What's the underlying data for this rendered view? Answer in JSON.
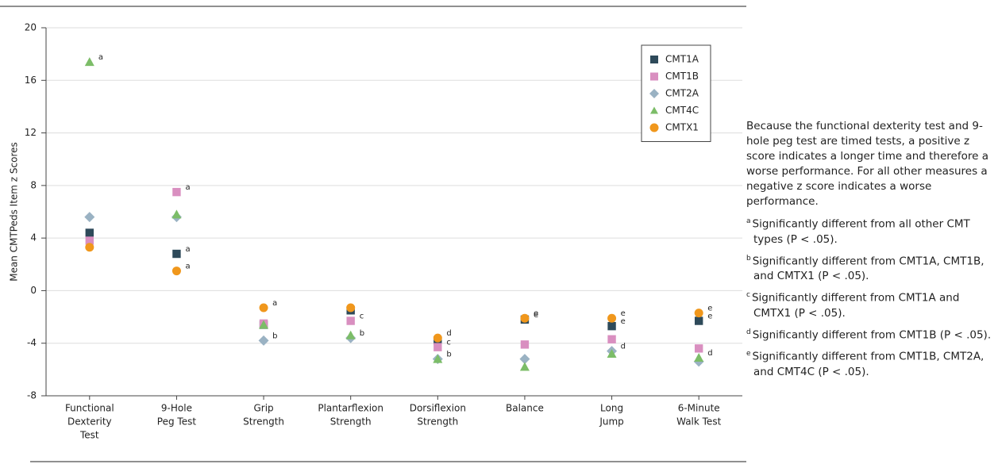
{
  "chart_data": {
    "type": "dot",
    "y_label": "Mean CMTPeds Item z Scores",
    "categories": [
      [
        "Functional",
        "Dexterity",
        "Test"
      ],
      [
        "9-Hole",
        "Peg Test"
      ],
      [
        "Grip",
        "Strength"
      ],
      [
        "Plantarflexion",
        "Strength"
      ],
      [
        "Dorsiflexion",
        "Strength"
      ],
      [
        "Balance"
      ],
      [
        "Long",
        "Jump"
      ],
      [
        "6-Minute",
        "Walk Test"
      ]
    ],
    "ylim": [
      -8,
      20
    ],
    "yticks": [
      -8,
      -4,
      0,
      4,
      8,
      12,
      16,
      20
    ],
    "grid": true,
    "legend": "upper right",
    "series": [
      {
        "name": "CMT1A",
        "color": "#2e4a5a",
        "marker": "square",
        "values": [
          4.4,
          2.8,
          -2.6,
          -1.5,
          -3.8,
          -2.2,
          -2.7,
          -2.3
        ],
        "notes": [
          null,
          "a",
          null,
          null,
          null,
          "e",
          "e",
          "e"
        ]
      },
      {
        "name": "CMT1B",
        "color": "#d98fc0",
        "marker": "square",
        "values": [
          3.8,
          7.5,
          -2.5,
          -2.3,
          -4.3,
          -4.1,
          -3.7,
          -4.4
        ],
        "notes": [
          null,
          "a",
          null,
          "c",
          "c",
          null,
          null,
          null
        ]
      },
      {
        "name": "CMT2A",
        "color": "#9ab2c3",
        "marker": "diamond",
        "values": [
          5.6,
          5.6,
          -3.8,
          -3.6,
          -5.2,
          -5.2,
          -4.6,
          -5.4
        ],
        "notes": [
          null,
          null,
          "b",
          "b",
          "b",
          null,
          "d",
          null
        ]
      },
      {
        "name": "CMT4C",
        "color": "#7cbd68",
        "marker": "triangle",
        "values": [
          17.4,
          5.8,
          -2.6,
          -3.4,
          -5.2,
          -5.8,
          -4.8,
          -5.1
        ],
        "notes": [
          "a",
          null,
          null,
          null,
          null,
          null,
          null,
          "d"
        ]
      },
      {
        "name": "CMTX1",
        "color": "#f0971c",
        "marker": "circle",
        "values": [
          3.3,
          1.5,
          -1.3,
          -1.3,
          -3.6,
          -2.1,
          -2.1,
          -1.7
        ],
        "notes": [
          null,
          "a",
          "a",
          null,
          "d",
          "e",
          "e",
          "e"
        ]
      }
    ]
  },
  "side_note": {
    "intro": "Because the functional dexterity test and 9-hole peg test are timed tests, a positive z score indicates a longer time and therefore a worse performance. For all other measures a negative z score indicates a worse performance.",
    "footnotes": [
      {
        "mark": "a",
        "text": "Significantly different from all other CMT types (P < .05)."
      },
      {
        "mark": "b",
        "text": "Significantly different from CMT1A, CMT1B, and CMTX1 (P < .05)."
      },
      {
        "mark": "c",
        "text": "Significantly different from CMT1A and CMTX1 (P < .05)."
      },
      {
        "mark": "d",
        "text": "Significantly different from CMT1B (P < .05)."
      },
      {
        "mark": "e",
        "text": "Significantly different from CMT1B, CMT2A, and CMT4C (P < .05)."
      }
    ]
  }
}
